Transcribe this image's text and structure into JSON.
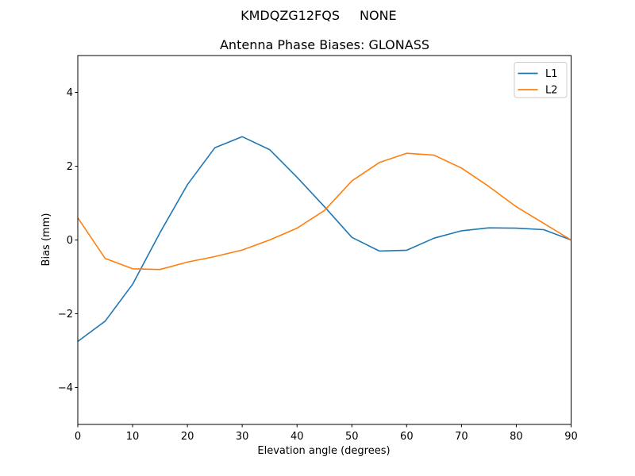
{
  "chart_data": {
    "type": "line",
    "suptitle_left": "KMDQZG12FQS",
    "suptitle_right": "NONE",
    "title": "Antenna Phase Biases: GLONASS",
    "xlabel": "Elevation angle (degrees)",
    "ylabel": "Bias (mm)",
    "xlim": [
      0,
      90
    ],
    "ylim": [
      -5,
      5
    ],
    "xticks": [
      0,
      10,
      20,
      30,
      40,
      50,
      60,
      70,
      80,
      90
    ],
    "yticks": [
      -4,
      -2,
      0,
      2,
      4
    ],
    "grid": false,
    "legend_position": "upper right",
    "axis_color": "#000000",
    "legend_border_color": "#cccccc",
    "x": [
      0,
      5,
      10,
      15,
      20,
      25,
      30,
      35,
      40,
      45,
      50,
      55,
      60,
      65,
      70,
      75,
      80,
      85,
      90
    ],
    "series": [
      {
        "name": "L1",
        "color": "#1f77b4",
        "values": [
          -2.75,
          -2.2,
          -1.2,
          0.2,
          1.5,
          2.5,
          2.8,
          2.45,
          1.7,
          0.9,
          0.07,
          -0.3,
          -0.28,
          0.05,
          0.25,
          0.33,
          0.32,
          0.28,
          0.0
        ]
      },
      {
        "name": "L2",
        "color": "#ff7f0e",
        "values": [
          0.6,
          -0.5,
          -0.78,
          -0.8,
          -0.6,
          -0.45,
          -0.27,
          0.0,
          0.32,
          0.8,
          1.6,
          2.1,
          2.35,
          2.3,
          1.95,
          1.45,
          0.9,
          0.45,
          0.0
        ]
      }
    ]
  }
}
